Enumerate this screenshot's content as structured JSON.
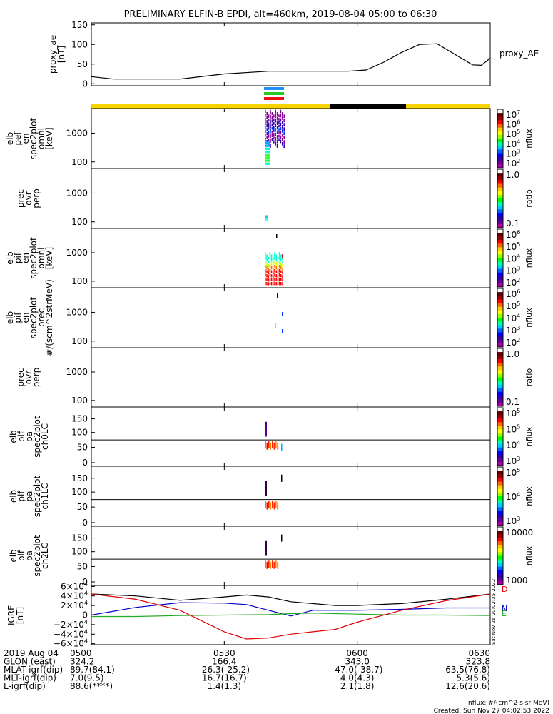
{
  "title": "PRELIMINARY ELFIN-B EPDI, alt=460km, 2019-08-04 05:00 to 06:30",
  "state_bars": {
    "top": [
      "blue",
      "green",
      "red"
    ],
    "top_colors": [
      "#1e90ff",
      "#22cc22",
      "#ee1111"
    ],
    "yellow": "#f5d400",
    "black": "#000000"
  },
  "chart_data": [
    {
      "id": "proxy_ae",
      "type": "line",
      "ylabel": "proxy_ae [nT]",
      "legend": "proxy_AE",
      "ylim": [
        -5,
        155
      ],
      "yticks": [
        "150",
        "100",
        "50",
        "0"
      ],
      "x_minutes": [
        0,
        5,
        20,
        30,
        40,
        50,
        58,
        62,
        66,
        70,
        74,
        78,
        82,
        86,
        88,
        90
      ],
      "values": [
        18,
        12,
        12,
        25,
        32,
        32,
        32,
        35,
        55,
        80,
        100,
        102,
        75,
        48,
        47,
        65
      ]
    },
    {
      "id": "elb_pef_en_spec",
      "type": "heatmap",
      "ylabel": [
        "elb",
        "pef",
        "en",
        "spec2plot",
        "omni",
        "[keV]"
      ],
      "yticks": [
        "1000",
        "100"
      ],
      "colorbar": {
        "unit": "nflux",
        "labels": [
          "10^7",
          "10^6",
          "10^5",
          "10^4",
          "10^3",
          "10^2"
        ]
      }
    },
    {
      "id": "prec_ovr_perp",
      "type": "heatmap",
      "ylabel": [
        "prec",
        "ovr",
        "perp"
      ],
      "yticks": [
        "1000",
        "100"
      ],
      "colorbar": {
        "unit": "ratio",
        "labels": [
          "1.0",
          "0.1"
        ]
      }
    },
    {
      "id": "elb_pif_en_spec",
      "type": "heatmap",
      "ylabel": [
        "elb",
        "pif",
        "en",
        "spec2plot",
        "omni",
        "[keV]"
      ],
      "yticks": [
        "1000",
        "100"
      ],
      "colorbar": {
        "unit": "nflux",
        "labels": [
          "10^6",
          "10^5",
          "10^4",
          "10^3",
          "10^2"
        ]
      }
    },
    {
      "id": "elb_pif_en_prec",
      "type": "heatmap",
      "ylabel": [
        "elb",
        "pif",
        "en",
        "spec2plot",
        "prec",
        "#/(scm^2strMeV)"
      ],
      "yticks": [
        "1000",
        "100"
      ],
      "colorbar": {
        "unit": "nflux",
        "labels": [
          "10^6",
          "10^5",
          "10^4",
          "10^3",
          "10^2"
        ]
      }
    },
    {
      "id": "prec_ovr_perp_2",
      "type": "heatmap",
      "ylabel": [
        "prec",
        "ovr",
        "perp"
      ],
      "yticks": [
        "1000",
        "100"
      ],
      "colorbar": {
        "unit": "ratio",
        "labels": [
          "1.0",
          "0.1"
        ]
      }
    },
    {
      "id": "elb_pif_pa_ch0",
      "type": "heatmap",
      "ylabel": [
        "elb",
        "pif",
        "pa",
        "spec2plot",
        "ch0LC"
      ],
      "yticks": [
        "150",
        "100",
        "50",
        "0"
      ],
      "colorbar": {
        "unit": "nflux",
        "labels": [
          "10^5",
          "10^5",
          "10^4",
          "10^3"
        ]
      }
    },
    {
      "id": "elb_pif_pa_ch1",
      "type": "heatmap",
      "ylabel": [
        "elb",
        "pif",
        "pa",
        "spec2plot",
        "ch1LC"
      ],
      "yticks": [
        "150",
        "100",
        "50",
        "0"
      ],
      "colorbar": {
        "unit": "nflux",
        "labels": [
          "10^5",
          "10^4",
          "10^3"
        ]
      }
    },
    {
      "id": "elb_pif_pa_ch2",
      "type": "heatmap",
      "ylabel": [
        "elb",
        "pif",
        "pa",
        "spec2plot",
        "ch2LC"
      ],
      "yticks": [
        "150",
        "100",
        "50",
        "0"
      ],
      "colorbar": {
        "unit": "nflux",
        "labels": [
          "10000",
          "1000"
        ]
      }
    },
    {
      "id": "igrf",
      "type": "line",
      "ylabel": "IGRF [nT]",
      "ylim": [
        -62000,
        62000
      ],
      "yticks": [
        "6×10^4",
        "4×10^4",
        "2×10^4",
        "0",
        "−2×10^4",
        "−4×10^4",
        "−6×10^4"
      ],
      "series": [
        {
          "name": "D",
          "color": "#000000",
          "x_minutes": [
            0,
            10,
            20,
            30,
            35,
            40,
            45,
            55,
            60,
            70,
            80,
            90
          ],
          "values": [
            44000,
            40000,
            31000,
            38000,
            42000,
            38000,
            28000,
            20000,
            20000,
            24000,
            33000,
            44000
          ]
        },
        {
          "name": "N",
          "color": "#0000cc",
          "x_minutes": [
            0,
            10,
            20,
            30,
            35,
            40,
            45,
            50,
            55,
            60,
            70,
            80,
            90
          ],
          "values": [
            0,
            16000,
            26000,
            25000,
            22000,
            10000,
            -2000,
            10000,
            10000,
            10000,
            12000,
            15000,
            15000
          ]
        },
        {
          "name": "E",
          "color": "#22aa22",
          "x_minutes": [
            0,
            10,
            20,
            30,
            40,
            45,
            50,
            60,
            70,
            80,
            90
          ],
          "values": [
            -3000,
            -3000,
            -1000,
            0,
            1000,
            3000,
            4000,
            2000,
            0,
            0,
            -1000
          ]
        },
        {
          "name": "",
          "color": "#dd0000",
          "x_minutes": [
            0,
            10,
            20,
            30,
            35,
            40,
            45,
            50,
            55,
            60,
            70,
            80,
            90
          ],
          "values": [
            44000,
            33000,
            10000,
            -35000,
            -50000,
            -48000,
            -40000,
            -35000,
            -30000,
            -15000,
            10000,
            30000,
            44000
          ]
        }
      ],
      "right_labels": [
        "D",
        "N",
        "E"
      ],
      "side_text": "Sat Nov 26 20:02:35 2022"
    }
  ],
  "x_axis": {
    "tick_minutes": [
      0,
      30,
      60,
      90
    ],
    "labels": [
      "0500",
      "0530",
      "0600",
      "0630"
    ]
  },
  "ephemeris": [
    {
      "label": "2019 Aug 04",
      "values": [
        "0500",
        "0530",
        "0600",
        "0630"
      ]
    },
    {
      "label": "GLON (east)",
      "values": [
        "324.2",
        "166.4",
        "343.0",
        "323.8"
      ]
    },
    {
      "label": "MLAT-igrf(dip)",
      "values": [
        "89.7(84.1)",
        "-26.3(-25.2)",
        "-47.0(-38.7)",
        "63.5(76.8)"
      ]
    },
    {
      "label": "MLT-igrf(dip)",
      "values": [
        "7.0(9.5)",
        "16.7(16.7)",
        "4.0(4.3)",
        "5.3(5.6)"
      ]
    },
    {
      "label": "L-igrf(dip)",
      "values": [
        "88.6(****)",
        "1.4(1.3)",
        "2.1(1.8)",
        "12.6(20.6)"
      ]
    }
  ],
  "footer": {
    "units": "nflux: #/(cm^2 s sr MeV)",
    "created": "Created: Sun Nov 27 04:02:53 2022"
  }
}
